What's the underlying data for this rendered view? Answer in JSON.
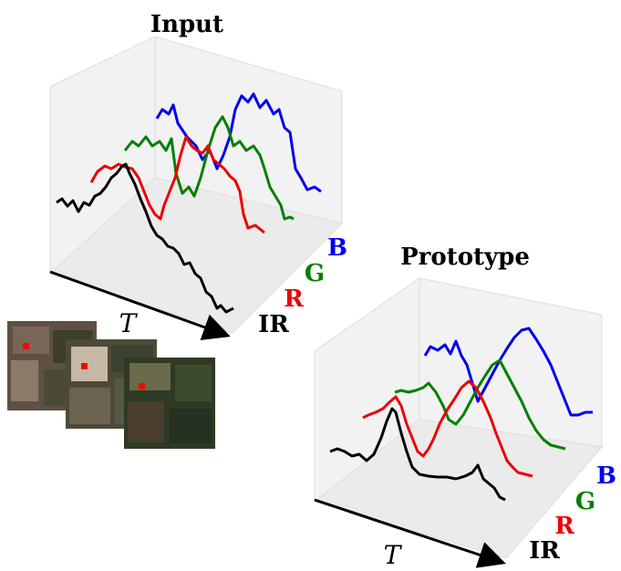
{
  "panels": [
    {
      "title": "Input",
      "time_label": "T",
      "channels": [
        "IR",
        "R",
        "G",
        "B"
      ]
    },
    {
      "title": "Prototype",
      "time_label": "T",
      "channels": [
        "IR",
        "R",
        "G",
        "B"
      ]
    }
  ]
}
